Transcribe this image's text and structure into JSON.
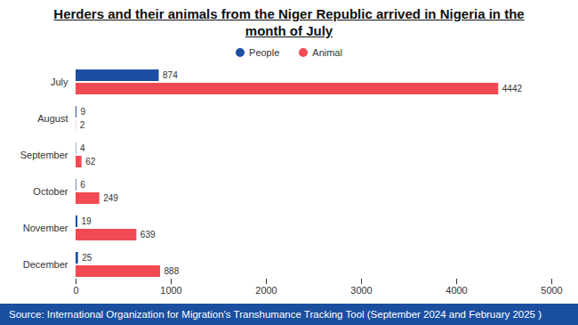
{
  "chart_data": {
    "type": "bar",
    "orientation": "horizontal",
    "title": "Herders and their animals from the Niger Republic arrived in Nigeria in the month of July",
    "caption": "Source: International Organization for Migration's Transhumance Tracking Tool (September 2024 and February 2025 )",
    "categories": [
      "July",
      "August",
      "September",
      "October",
      "November",
      "December"
    ],
    "series": [
      {
        "name": "People",
        "color": "#1c4fa1",
        "values": [
          874,
          9,
          4,
          6,
          19,
          25
        ]
      },
      {
        "name": "Animal",
        "color": "#f24a52",
        "values": [
          4442,
          2,
          62,
          249,
          639,
          888
        ]
      }
    ],
    "xlim": [
      0,
      5000
    ],
    "xticks": [
      0,
      1000,
      2000,
      3000,
      4000,
      5000
    ],
    "grid": false,
    "legend": "top",
    "data_labels": true
  }
}
